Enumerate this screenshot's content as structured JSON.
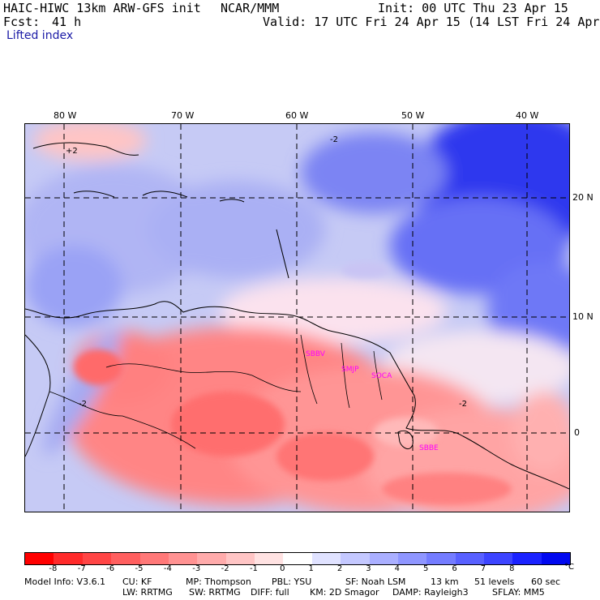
{
  "header": {
    "model": "HAIC-HIWC 13km ARW-GFS init",
    "org": "NCAR/MMM",
    "init": "Init: 00 UTC Thu 23 Apr 15",
    "fcst_label": "Fcst:",
    "fcst_value": "41 h",
    "valid": "Valid: 17 UTC Fri 24 Apr 15 (14 LST Fri 24 Apr 15)"
  },
  "field_title": "Lifted index",
  "map": {
    "lon_labels": [
      "80 W",
      "70 W",
      "60 W",
      "50 W",
      "40 W"
    ],
    "lat_labels": [
      "20 N",
      "10 N",
      "0"
    ],
    "contour_labels": [
      "+2",
      "-2",
      "-2",
      "-2"
    ],
    "stations": [
      "SBBV",
      "SMJP",
      "SOCA",
      "SBBE"
    ],
    "colors": {
      "coastline": "#000000",
      "stations": "#ff00ff",
      "gridlines": "#000000"
    }
  },
  "colorbar": {
    "tick_labels": [
      "-8",
      "-7",
      "-6",
      "-5",
      "-4",
      "-3",
      "-2",
      "-1",
      "0",
      "1",
      "2",
      "3",
      "4",
      "5",
      "6",
      "7",
      "8"
    ],
    "unit": "°C",
    "colors": [
      "#ff0000",
      "#ff2a2a",
      "#ff4545",
      "#ff5f5f",
      "#ff7878",
      "#ff9292",
      "#ffabab",
      "#ffc5c5",
      "#ffe2e2",
      "#ffffff",
      "#e0e2ff",
      "#c4c8ff",
      "#aaafff",
      "#8f96ff",
      "#747cff",
      "#5860ff",
      "#3c44ff",
      "#1a22ff",
      "#0008f0"
    ]
  },
  "footer": {
    "line1": [
      "Model Info: V3.6.1",
      "CU: KF",
      "MP: Thompson",
      "PBL: YSU",
      "SF: Noah LSM",
      "13 km",
      "51 levels",
      "60 sec"
    ],
    "line2": [
      "LW: RRTMG",
      "SW: RRTMG",
      "DIFF: full",
      "KM: 2D Smagor",
      "DAMP: Rayleigh3",
      "SFLAY: MM5"
    ]
  }
}
